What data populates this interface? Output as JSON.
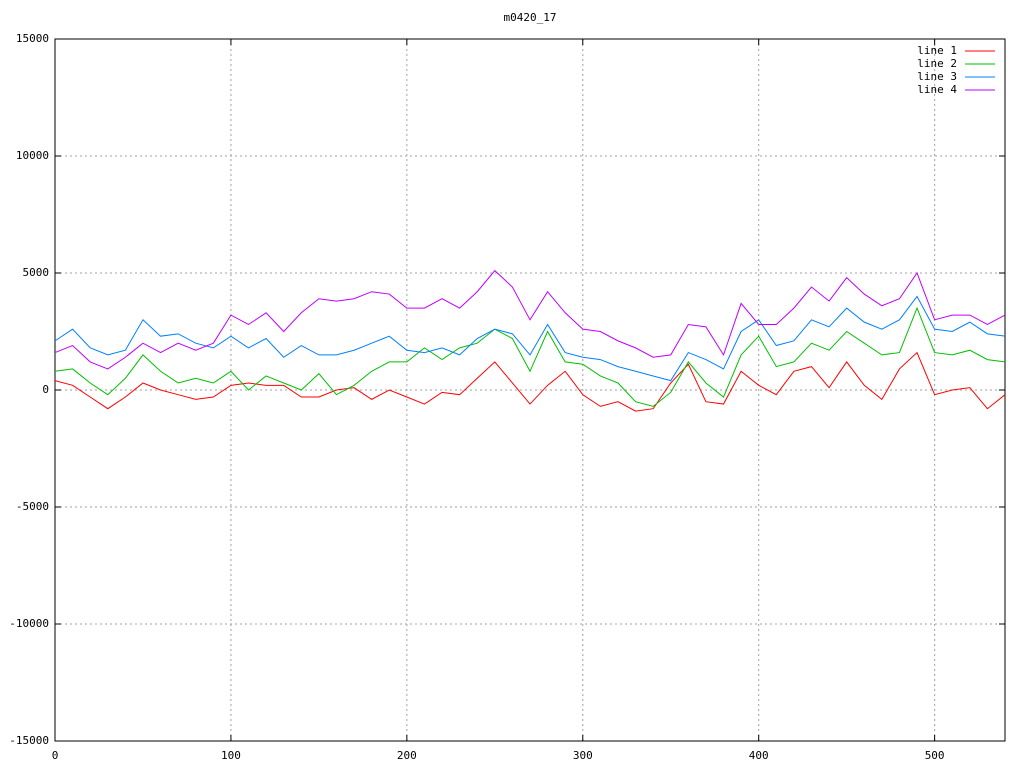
{
  "chart_data": {
    "type": "line",
    "title": "m0420_17",
    "x": [
      0,
      10,
      20,
      30,
      40,
      50,
      60,
      70,
      80,
      90,
      100,
      110,
      120,
      130,
      140,
      150,
      160,
      170,
      180,
      190,
      200,
      210,
      220,
      230,
      240,
      250,
      260,
      270,
      280,
      290,
      300,
      310,
      320,
      330,
      340,
      350,
      360,
      370,
      380,
      390,
      400,
      410,
      420,
      430,
      440,
      450,
      460,
      470,
      480,
      490,
      500,
      510,
      520,
      530,
      540
    ],
    "series": [
      {
        "name": "line 1",
        "color": "#ff0000",
        "values": [
          400,
          200,
          -300,
          -800,
          -300,
          300,
          0,
          -200,
          -400,
          -300,
          200,
          300,
          200,
          200,
          -300,
          -300,
          0,
          100,
          -400,
          0,
          -300,
          -600,
          -100,
          -200,
          500,
          1200,
          300,
          -600,
          200,
          800,
          -200,
          -700,
          -500,
          -900,
          -800,
          300,
          1100,
          -500,
          -600,
          800,
          200,
          -200,
          800,
          1000,
          100,
          1200,
          200,
          -400,
          900,
          1600,
          -200,
          0,
          100,
          -800,
          -200
        ]
      },
      {
        "name": "line 2",
        "color": "#00c000",
        "values": [
          800,
          900,
          300,
          -200,
          500,
          1500,
          800,
          300,
          500,
          300,
          800,
          0,
          600,
          300,
          0,
          700,
          -200,
          200,
          800,
          1200,
          1200,
          1800,
          1300,
          1800,
          2000,
          2600,
          2200,
          800,
          2500,
          1200,
          1100,
          600,
          300,
          -500,
          -700,
          -100,
          1200,
          300,
          -300,
          1500,
          2300,
          1000,
          1200,
          2000,
          1700,
          2500,
          2000,
          1500,
          1600,
          3500,
          1600,
          1500,
          1700,
          1300,
          1200
        ]
      },
      {
        "name": "line 3",
        "color": "#0080ff",
        "values": [
          2100,
          2600,
          1800,
          1500,
          1700,
          3000,
          2300,
          2400,
          2000,
          1800,
          2300,
          1800,
          2200,
          1400,
          1900,
          1500,
          1500,
          1700,
          2000,
          2300,
          1700,
          1600,
          1800,
          1500,
          2200,
          2600,
          2400,
          1500,
          2800,
          1600,
          1400,
          1300,
          1000,
          800,
          600,
          400,
          1600,
          1300,
          900,
          2500,
          3000,
          1900,
          2100,
          3000,
          2700,
          3500,
          2900,
          2600,
          3000,
          4000,
          2600,
          2500,
          2900,
          2400,
          2300
        ]
      },
      {
        "name": "line 4",
        "color": "#c000ff",
        "values": [
          1600,
          1900,
          1200,
          900,
          1400,
          2000,
          1600,
          2000,
          1700,
          2000,
          3200,
          2800,
          3300,
          2500,
          3300,
          3900,
          3800,
          3900,
          4200,
          4100,
          3500,
          3500,
          3900,
          3500,
          4200,
          5100,
          4400,
          3000,
          4200,
          3300,
          2600,
          2500,
          2100,
          1800,
          1400,
          1500,
          2800,
          2700,
          1500,
          3700,
          2800,
          2800,
          3500,
          4400,
          3800,
          4800,
          4100,
          3600,
          3900,
          5000,
          3000,
          3200,
          3200,
          2800,
          3200
        ]
      }
    ],
    "xlim": [
      0,
      540
    ],
    "ylim": [
      -15000,
      15000
    ],
    "xticks": [
      0,
      100,
      200,
      300,
      400,
      500
    ],
    "yticks": [
      -15000,
      -10000,
      -5000,
      0,
      5000,
      10000,
      15000
    ],
    "grid": true,
    "legend": "top-right"
  }
}
